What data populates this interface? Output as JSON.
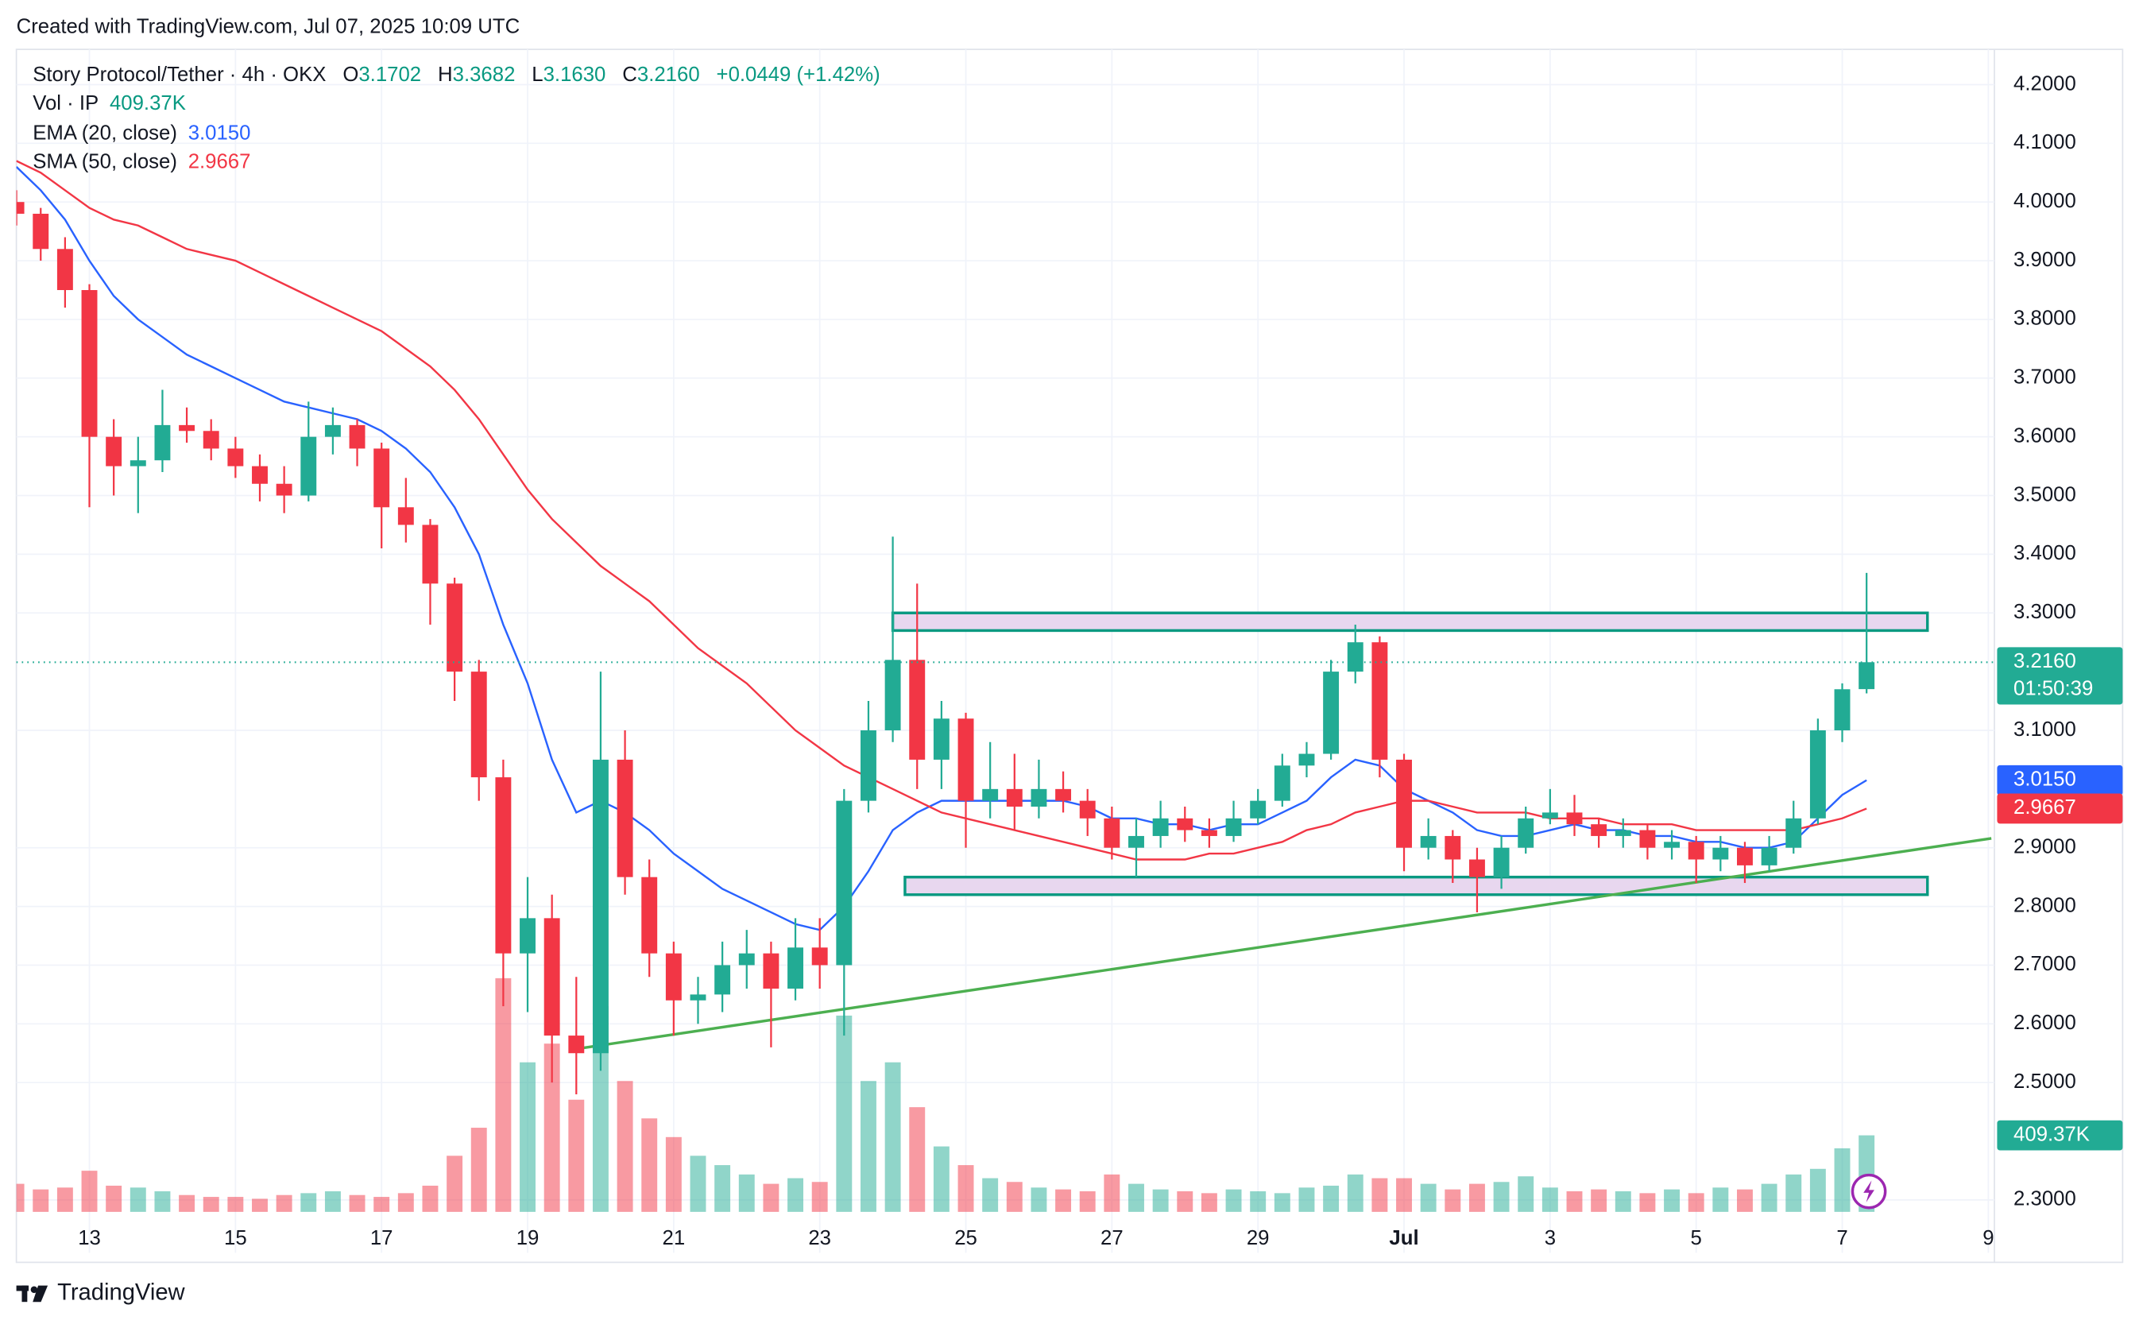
{
  "watermark": "Created with TradingView.com, Jul 07, 2025 10:09 UTC",
  "brand": "TradingView",
  "chart_data": {
    "type": "candlestick",
    "legend": {
      "symbol": "Story Protocol/Tether · 4h · OKX",
      "ohlc": [
        {
          "key": "O",
          "value": "3.1702"
        },
        {
          "key": "H",
          "value": "3.3682"
        },
        {
          "key": "L",
          "value": "3.1630"
        },
        {
          "key": "C",
          "value": "3.2160"
        }
      ],
      "change": "+0.0449 (+1.42%)",
      "volume_label": "409.37K",
      "series_labels": [
        "3.0150",
        "2.9667"
      ]
    },
    "countdown": "01:50:39",
    "x": [
      0,
      8,
      16,
      24,
      32,
      40,
      48,
      56,
      64,
      72,
      80,
      88,
      96,
      104,
      112,
      120,
      128,
      136,
      144,
      152,
      160,
      168,
      176,
      184,
      192,
      200,
      208,
      216,
      224,
      232,
      240,
      248,
      256,
      264,
      272,
      280,
      288,
      296,
      304,
      312,
      320,
      328,
      336,
      344,
      352,
      360,
      368,
      376,
      384,
      392,
      400,
      408,
      416,
      424,
      432,
      440,
      448,
      456,
      464,
      472,
      480,
      488,
      496,
      504,
      512,
      520,
      528,
      536,
      544,
      552,
      560,
      568,
      576,
      584,
      592,
      600,
      608
    ],
    "open": [
      4.0,
      3.98,
      3.92,
      3.85,
      3.6,
      3.55,
      3.56,
      3.62,
      3.61,
      3.58,
      3.55,
      3.52,
      3.5,
      3.6,
      3.62,
      3.58,
      3.48,
      3.45,
      3.35,
      3.2,
      3.02,
      2.72,
      2.78,
      2.58,
      2.55,
      3.05,
      2.85,
      2.72,
      2.64,
      2.65,
      2.7,
      2.72,
      2.66,
      2.73,
      2.7,
      2.98,
      3.1,
      3.22,
      3.05,
      3.12,
      2.98,
      3.0,
      2.97,
      3.0,
      2.98,
      2.95,
      2.9,
      2.92,
      2.95,
      2.93,
      2.92,
      2.95,
      2.98,
      3.04,
      3.06,
      3.2,
      3.25,
      3.05,
      2.9,
      2.92,
      2.88,
      2.85,
      2.9,
      2.95,
      2.96,
      2.94,
      2.92,
      2.93,
      2.9,
      2.91,
      2.88,
      2.9,
      2.87,
      2.9,
      2.95,
      3.1,
      3.1702
    ],
    "high": [
      4.02,
      3.99,
      3.94,
      3.86,
      3.63,
      3.6,
      3.68,
      3.65,
      3.63,
      3.6,
      3.57,
      3.55,
      3.66,
      3.65,
      3.63,
      3.59,
      3.53,
      3.46,
      3.36,
      3.22,
      3.05,
      2.85,
      2.82,
      2.68,
      3.2,
      3.1,
      2.88,
      2.74,
      2.68,
      2.74,
      2.76,
      2.74,
      2.78,
      2.78,
      3.0,
      3.15,
      3.43,
      3.35,
      3.15,
      3.13,
      3.08,
      3.06,
      3.05,
      3.03,
      3.0,
      2.97,
      2.95,
      2.98,
      2.97,
      2.95,
      2.98,
      3.0,
      3.06,
      3.08,
      3.22,
      3.28,
      3.26,
      3.06,
      2.95,
      2.93,
      2.9,
      2.92,
      2.97,
      3.0,
      2.99,
      2.95,
      2.95,
      2.94,
      2.93,
      2.92,
      2.92,
      2.91,
      2.92,
      2.98,
      3.12,
      3.18,
      3.3682
    ],
    "low": [
      3.96,
      3.9,
      3.82,
      3.48,
      3.5,
      3.47,
      3.54,
      3.59,
      3.56,
      3.53,
      3.49,
      3.47,
      3.49,
      3.57,
      3.55,
      3.41,
      3.42,
      3.28,
      3.15,
      2.98,
      2.63,
      2.62,
      2.5,
      2.48,
      2.52,
      2.82,
      2.68,
      2.58,
      2.6,
      2.62,
      2.66,
      2.56,
      2.64,
      2.66,
      2.58,
      2.96,
      3.08,
      3.0,
      3.0,
      2.9,
      2.95,
      2.93,
      2.95,
      2.96,
      2.92,
      2.88,
      2.85,
      2.9,
      2.91,
      2.9,
      2.91,
      2.94,
      2.97,
      3.02,
      3.05,
      3.18,
      3.02,
      2.86,
      2.88,
      2.84,
      2.79,
      2.83,
      2.89,
      2.94,
      2.92,
      2.9,
      2.9,
      2.88,
      2.88,
      2.84,
      2.86,
      2.84,
      2.86,
      2.89,
      2.94,
      3.08,
      3.163
    ],
    "close": [
      3.98,
      3.92,
      3.85,
      3.6,
      3.55,
      3.56,
      3.62,
      3.61,
      3.58,
      3.55,
      3.52,
      3.5,
      3.6,
      3.62,
      3.58,
      3.48,
      3.45,
      3.35,
      3.2,
      3.02,
      2.72,
      2.78,
      2.58,
      2.55,
      3.05,
      2.85,
      2.72,
      2.64,
      2.65,
      2.7,
      2.72,
      2.66,
      2.73,
      2.7,
      2.98,
      3.1,
      3.22,
      3.05,
      3.12,
      2.98,
      3.0,
      2.97,
      3.0,
      2.98,
      2.95,
      2.9,
      2.92,
      2.95,
      2.93,
      2.92,
      2.95,
      2.98,
      3.04,
      3.06,
      3.2,
      3.25,
      3.05,
      2.9,
      2.92,
      2.88,
      2.85,
      2.9,
      2.95,
      2.96,
      2.94,
      2.92,
      2.93,
      2.9,
      2.91,
      2.88,
      2.9,
      2.87,
      2.9,
      2.95,
      3.1,
      3.17,
      3.216
    ],
    "up_color": "#22ab94",
    "down_color": "#f23645",
    "volume": {
      "name": "Vol · IP",
      "values": [
        150,
        120,
        130,
        220,
        140,
        130,
        110,
        90,
        80,
        80,
        70,
        90,
        100,
        110,
        90,
        80,
        100,
        140,
        300,
        450,
        1250,
        800,
        900,
        600,
        1100,
        700,
        500,
        400,
        300,
        250,
        200,
        150,
        180,
        160,
        1050,
        700,
        800,
        560,
        350,
        250,
        180,
        160,
        130,
        120,
        110,
        200,
        150,
        120,
        110,
        100,
        120,
        110,
        100,
        130,
        140,
        200,
        180,
        180,
        150,
        120,
        150,
        160,
        190,
        130,
        110,
        120,
        110,
        100,
        120,
        100,
        130,
        120,
        150,
        200,
        230,
        340,
        409.37
      ]
    },
    "series": [
      {
        "name": "EMA (20, close)",
        "color": "#2962ff",
        "values": [
          4.06,
          4.02,
          3.97,
          3.9,
          3.84,
          3.8,
          3.77,
          3.74,
          3.72,
          3.7,
          3.68,
          3.66,
          3.65,
          3.64,
          3.63,
          3.61,
          3.58,
          3.54,
          3.48,
          3.4,
          3.28,
          3.18,
          3.05,
          2.96,
          2.98,
          2.96,
          2.93,
          2.89,
          2.86,
          2.83,
          2.81,
          2.79,
          2.77,
          2.76,
          2.8,
          2.86,
          2.93,
          2.96,
          2.98,
          2.98,
          2.98,
          2.98,
          2.98,
          2.98,
          2.97,
          2.95,
          2.95,
          2.94,
          2.94,
          2.93,
          2.94,
          2.94,
          2.96,
          2.98,
          3.02,
          3.05,
          3.04,
          3.0,
          2.98,
          2.96,
          2.93,
          2.92,
          2.92,
          2.93,
          2.94,
          2.93,
          2.93,
          2.92,
          2.92,
          2.91,
          2.91,
          2.9,
          2.9,
          2.91,
          2.95,
          2.99,
          3.015
        ]
      },
      {
        "name": "SMA (50, close)",
        "color": "#f23645",
        "values": [
          4.07,
          4.05,
          4.02,
          3.99,
          3.97,
          3.96,
          3.94,
          3.92,
          3.91,
          3.9,
          3.88,
          3.86,
          3.84,
          3.82,
          3.8,
          3.78,
          3.75,
          3.72,
          3.68,
          3.63,
          3.57,
          3.51,
          3.46,
          3.42,
          3.38,
          3.35,
          3.32,
          3.28,
          3.24,
          3.21,
          3.18,
          3.14,
          3.1,
          3.07,
          3.04,
          3.02,
          3.0,
          2.98,
          2.96,
          2.95,
          2.94,
          2.93,
          2.92,
          2.91,
          2.9,
          2.89,
          2.88,
          2.88,
          2.88,
          2.89,
          2.89,
          2.9,
          2.91,
          2.93,
          2.94,
          2.96,
          2.97,
          2.98,
          2.98,
          2.97,
          2.96,
          2.96,
          2.96,
          2.95,
          2.95,
          2.95,
          2.94,
          2.94,
          2.94,
          2.93,
          2.93,
          2.93,
          2.93,
          2.93,
          2.94,
          2.95,
          2.9667
        ]
      }
    ],
    "drawings": {
      "zone_color": "#e8d7ef",
      "zone_border": "#089981",
      "trend_color": "#4caf50",
      "zones": [
        {
          "x": [
            288,
            628
          ],
          "y": [
            3.27,
            3.3
          ]
        },
        {
          "x": [
            292,
            628
          ],
          "y": [
            2.82,
            2.85
          ]
        }
      ],
      "trendline": {
        "x": [
          185,
          649
        ],
        "y": [
          2.558,
          2.916
        ]
      }
    },
    "xlim": [
      0,
      650
    ],
    "ylim": [
      2.21,
      4.26
    ],
    "xticks": [
      {
        "value": 24,
        "label": "13"
      },
      {
        "value": 72,
        "label": "15"
      },
      {
        "value": 120,
        "label": "17"
      },
      {
        "value": 168,
        "label": "19"
      },
      {
        "value": 216,
        "label": "21"
      },
      {
        "value": 264,
        "label": "23"
      },
      {
        "value": 312,
        "label": "25"
      },
      {
        "value": 360,
        "label": "27"
      },
      {
        "value": 408,
        "label": "29"
      },
      {
        "value": 456,
        "label": "Jul"
      },
      {
        "value": 504,
        "label": "3"
      },
      {
        "value": 552,
        "label": "5"
      },
      {
        "value": 600,
        "label": "7"
      },
      {
        "value": 648,
        "label": "9"
      }
    ],
    "yticks": [
      {
        "value": 2.3,
        "label": "2.3000"
      },
      {
        "value": 2.5,
        "label": "2.5000"
      },
      {
        "value": 2.6,
        "label": "2.6000"
      },
      {
        "value": 2.7,
        "label": "2.7000"
      },
      {
        "value": 2.8,
        "label": "2.8000"
      },
      {
        "value": 2.9,
        "label": "2.9000"
      },
      {
        "value": 3.1,
        "label": "3.1000"
      },
      {
        "value": 3.3,
        "label": "3.3000"
      },
      {
        "value": 3.4,
        "label": "3.4000"
      },
      {
        "value": 3.5,
        "label": "3.5000"
      },
      {
        "value": 3.6,
        "label": "3.6000"
      },
      {
        "value": 3.7,
        "label": "3.7000"
      },
      {
        "value": 3.8,
        "label": "3.8000"
      },
      {
        "value": 3.9,
        "label": "3.9000"
      },
      {
        "value": 4.0,
        "label": "4.0000"
      },
      {
        "value": 4.1,
        "label": "4.1000"
      },
      {
        "value": 4.2,
        "label": "4.2000"
      }
    ],
    "grid": true
  }
}
